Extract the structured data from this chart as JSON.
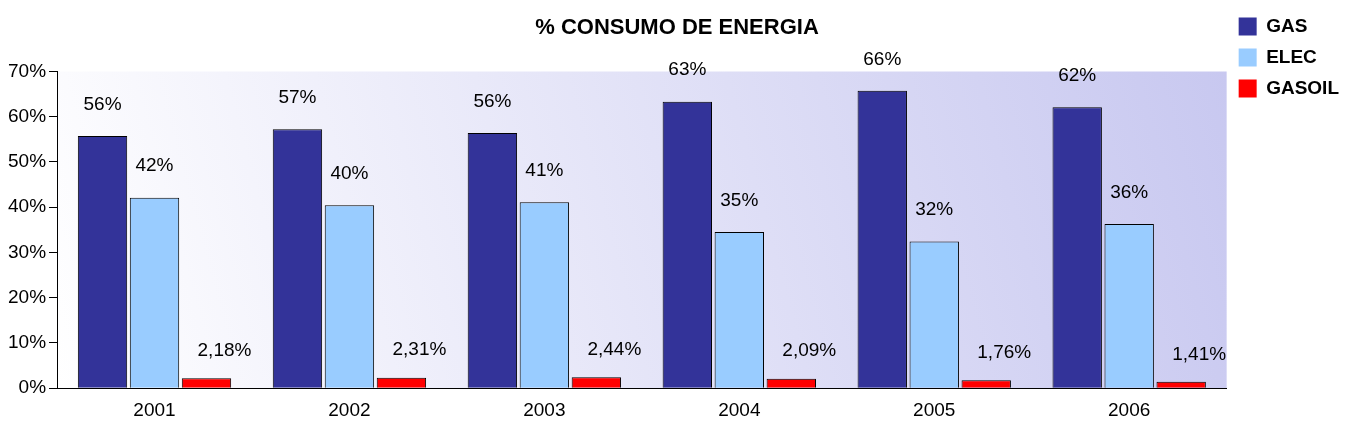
{
  "chart_data": {
    "type": "bar",
    "title": "% CONSUMO DE ENERGIA",
    "categories": [
      "2001",
      "2002",
      "2003",
      "2004",
      "2005",
      "2006"
    ],
    "series": [
      {
        "name": "GAS",
        "color": "#333399",
        "values": [
          55.7,
          57.2,
          56.4,
          63.3,
          65.7,
          62.1
        ],
        "value_labels": [
          "56%",
          "57%",
          "56%",
          "63%",
          "66%",
          "62%"
        ]
      },
      {
        "name": "ELEC",
        "color": "#99ccff",
        "values": [
          42.1,
          40.4,
          41.1,
          34.5,
          32.4,
          36.3
        ],
        "value_labels": [
          "42%",
          "40%",
          "41%",
          "35%",
          "32%",
          "36%"
        ]
      },
      {
        "name": "GASOIL",
        "color": "#ff0000",
        "values": [
          2.18,
          2.31,
          2.44,
          2.09,
          1.76,
          1.41
        ],
        "value_labels": [
          "2,18%",
          "2,31%",
          "2,44%",
          "2,09%",
          "1,76%",
          "1,41%"
        ]
      }
    ],
    "ylim": [
      0,
      70
    ],
    "yticks": [
      {
        "value": 0,
        "label": "0%"
      },
      {
        "value": 10,
        "label": "10%"
      },
      {
        "value": 20,
        "label": "20%"
      },
      {
        "value": 30,
        "label": "30%"
      },
      {
        "value": 40,
        "label": "40%"
      },
      {
        "value": 50,
        "label": "50%"
      },
      {
        "value": 60,
        "label": "60%"
      },
      {
        "value": 70,
        "label": "70%"
      }
    ],
    "grid": false,
    "legend": "top right"
  }
}
